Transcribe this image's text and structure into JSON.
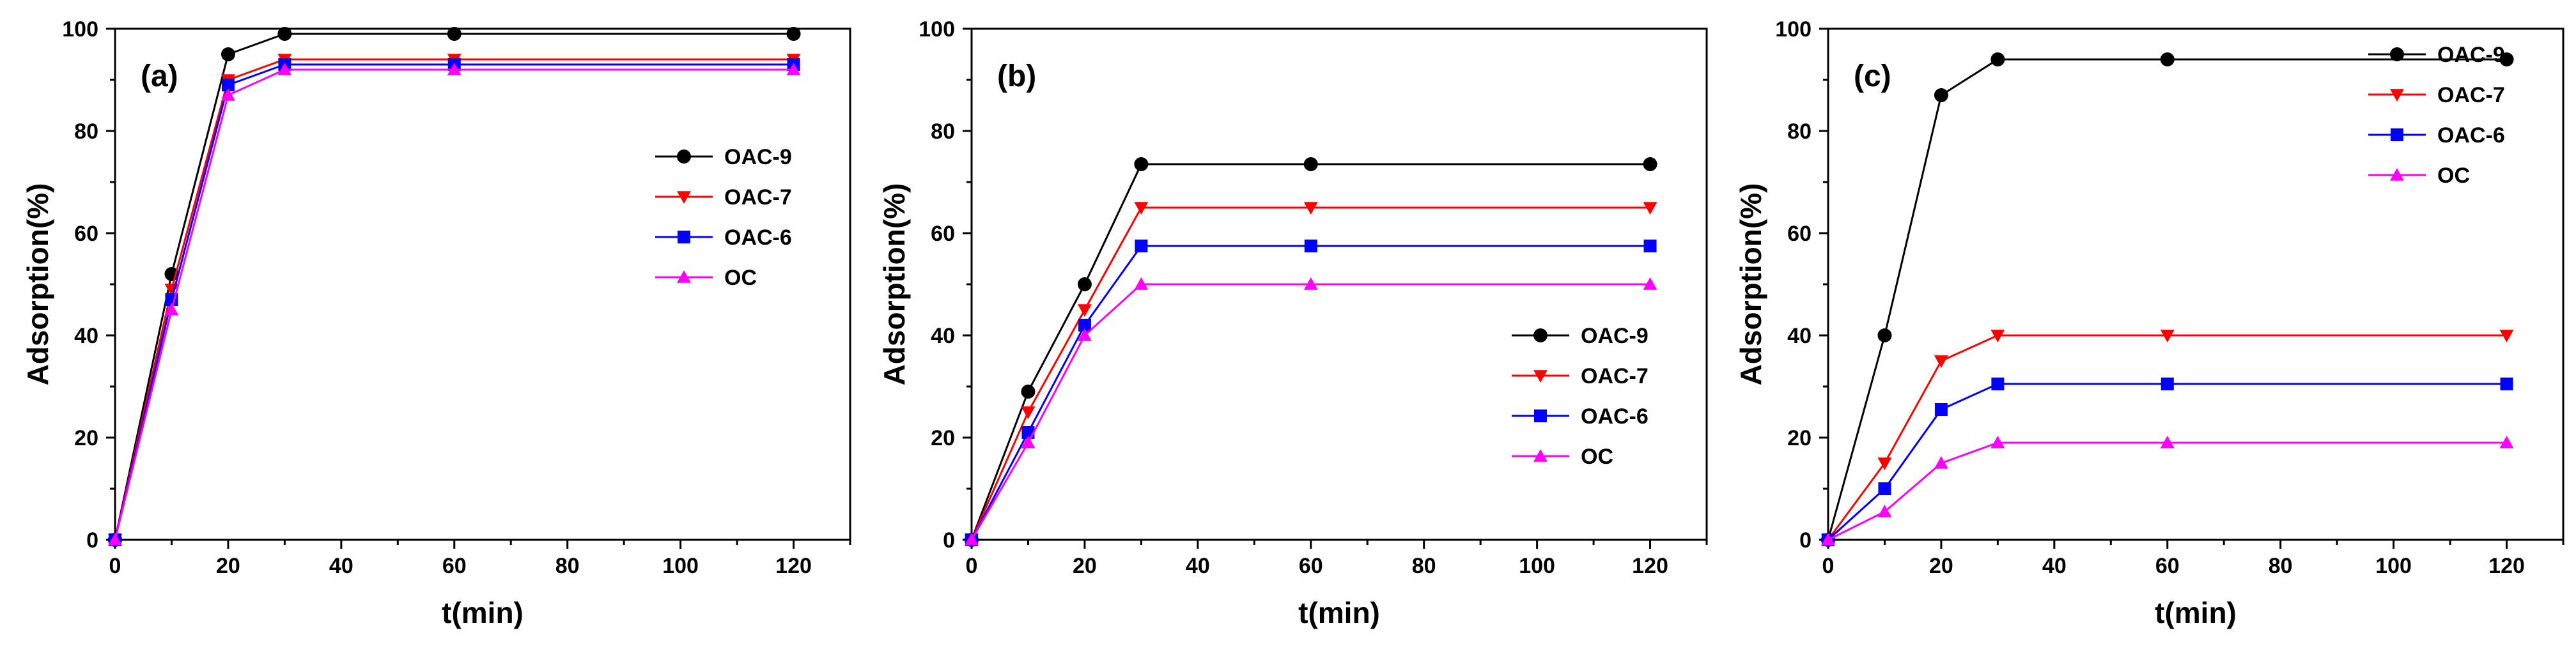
{
  "chart_data": [
    {
      "type": "line",
      "panel_label": "(a)",
      "xlabel": "t(min)",
      "ylabel": "Adsorption(%)",
      "xlim": [
        0,
        130
      ],
      "ylim": [
        0,
        100
      ],
      "xticks": [
        0,
        20,
        40,
        60,
        80,
        100,
        120
      ],
      "yticks": [
        0,
        20,
        40,
        60,
        80,
        100
      ],
      "x": [
        0,
        10,
        20,
        30,
        60,
        120
      ],
      "legend_position": "middle-right",
      "series": [
        {
          "name": "OAC-9",
          "color": "#000000",
          "marker": "circle",
          "values": [
            0,
            52,
            95,
            99,
            99,
            99
          ]
        },
        {
          "name": "OAC-7",
          "color": "#ff0000",
          "marker": "triangle-down",
          "values": [
            0,
            49,
            90,
            94,
            94,
            94
          ]
        },
        {
          "name": "OAC-6",
          "color": "#0000ff",
          "marker": "square",
          "values": [
            0,
            47,
            89,
            93,
            93,
            93
          ]
        },
        {
          "name": "OC",
          "color": "#ff00ff",
          "marker": "triangle-up",
          "values": [
            0,
            45,
            87,
            92,
            92,
            92
          ]
        }
      ]
    },
    {
      "type": "line",
      "panel_label": "(b)",
      "xlabel": "t(min)",
      "ylabel": "Adsorption(%)",
      "xlim": [
        0,
        130
      ],
      "ylim": [
        0,
        100
      ],
      "xticks": [
        0,
        20,
        40,
        60,
        80,
        100,
        120
      ],
      "yticks": [
        0,
        20,
        40,
        60,
        80,
        100
      ],
      "x": [
        0,
        10,
        20,
        30,
        60,
        120
      ],
      "legend_position": "lower-right",
      "series": [
        {
          "name": "OAC-9",
          "color": "#000000",
          "marker": "circle",
          "values": [
            0,
            29,
            50,
            73.5,
            73.5,
            73.5
          ]
        },
        {
          "name": "OAC-7",
          "color": "#ff0000",
          "marker": "triangle-down",
          "values": [
            0,
            25,
            45,
            65,
            65,
            65
          ]
        },
        {
          "name": "OAC-6",
          "color": "#0000ff",
          "marker": "square",
          "values": [
            0,
            21,
            42,
            57.5,
            57.5,
            57.5
          ]
        },
        {
          "name": "OC",
          "color": "#ff00ff",
          "marker": "triangle-up",
          "values": [
            0,
            19,
            40,
            50,
            50,
            50
          ]
        }
      ]
    },
    {
      "type": "line",
      "panel_label": "(c)",
      "xlabel": "t(min)",
      "ylabel": "Adsorption(%)",
      "xlim": [
        0,
        130
      ],
      "ylim": [
        0,
        100
      ],
      "xticks": [
        0,
        20,
        40,
        60,
        80,
        100,
        120
      ],
      "yticks": [
        0,
        20,
        40,
        60,
        80,
        100
      ],
      "x": [
        0,
        10,
        20,
        30,
        60,
        120
      ],
      "legend_position": "top-right",
      "series": [
        {
          "name": "OAC-9",
          "color": "#000000",
          "marker": "circle",
          "values": [
            0,
            40,
            87,
            94,
            94,
            94
          ]
        },
        {
          "name": "OAC-7",
          "color": "#ff0000",
          "marker": "triangle-down",
          "values": [
            0,
            15,
            35,
            40,
            40,
            40
          ]
        },
        {
          "name": "OAC-6",
          "color": "#0000ff",
          "marker": "square",
          "values": [
            0,
            10,
            25.5,
            30.5,
            30.5,
            30.5
          ]
        },
        {
          "name": "OC",
          "color": "#ff00ff",
          "marker": "triangle-up",
          "values": [
            0,
            5.5,
            15,
            19,
            19,
            19
          ]
        }
      ]
    }
  ]
}
